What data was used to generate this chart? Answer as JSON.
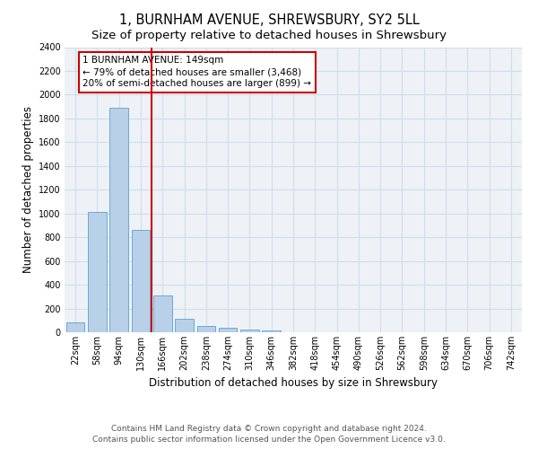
{
  "title": "1, BURNHAM AVENUE, SHREWSBURY, SY2 5LL",
  "subtitle": "Size of property relative to detached houses in Shrewsbury",
  "xlabel": "Distribution of detached houses by size in Shrewsbury",
  "ylabel": "Number of detached properties",
  "categories": [
    "22sqm",
    "58sqm",
    "94sqm",
    "130sqm",
    "166sqm",
    "202sqm",
    "238sqm",
    "274sqm",
    "310sqm",
    "346sqm",
    "382sqm",
    "418sqm",
    "454sqm",
    "490sqm",
    "526sqm",
    "562sqm",
    "598sqm",
    "634sqm",
    "670sqm",
    "706sqm",
    "742sqm"
  ],
  "values": [
    80,
    1010,
    1890,
    860,
    310,
    110,
    50,
    40,
    20,
    15,
    0,
    0,
    0,
    0,
    0,
    0,
    0,
    0,
    0,
    0,
    0
  ],
  "bar_color": "#b8d0e8",
  "bar_edge_color": "#6aaad4",
  "vline_x": 3.5,
  "vline_color": "#cc0000",
  "annotation_text": "1 BURNHAM AVENUE: 149sqm\n← 79% of detached houses are smaller (3,468)\n20% of semi-detached houses are larger (899) →",
  "annotation_box_color": "#cc0000",
  "ylim": [
    0,
    2400
  ],
  "yticks": [
    0,
    200,
    400,
    600,
    800,
    1000,
    1200,
    1400,
    1600,
    1800,
    2000,
    2200,
    2400
  ],
  "footer": "Contains HM Land Registry data © Crown copyright and database right 2024.\nContains public sector information licensed under the Open Government Licence v3.0.",
  "grid_color": "#d0dde8",
  "bg_color": "#eef2f7",
  "title_fontsize": 10.5,
  "subtitle_fontsize": 9.5,
  "tick_fontsize": 7,
  "ylabel_fontsize": 8.5,
  "xlabel_fontsize": 8.5,
  "footer_fontsize": 6.5,
  "annotation_fontsize": 7.5
}
